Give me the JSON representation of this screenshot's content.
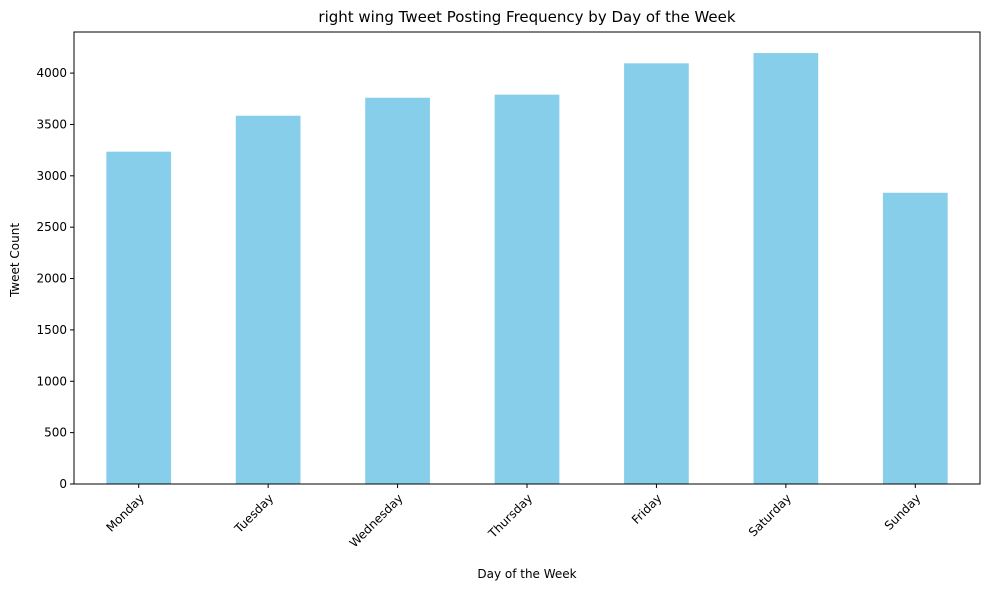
{
  "chart_data": {
    "type": "bar",
    "title": "right wing Tweet Posting Frequency by Day of the Week",
    "xlabel": "Day of the Week",
    "ylabel": "Tweet Count",
    "categories": [
      "Monday",
      "Tuesday",
      "Wednesday",
      "Thursday",
      "Friday",
      "Saturday",
      "Sunday"
    ],
    "values": [
      3235,
      3585,
      3760,
      3790,
      4095,
      4195,
      2835
    ],
    "ylim": [
      0,
      4400
    ],
    "yticks": [
      0,
      500,
      1000,
      1500,
      2000,
      2500,
      3000,
      3500,
      4000
    ],
    "bar_color": "#87CEEB",
    "grid": false,
    "legend": "none"
  }
}
